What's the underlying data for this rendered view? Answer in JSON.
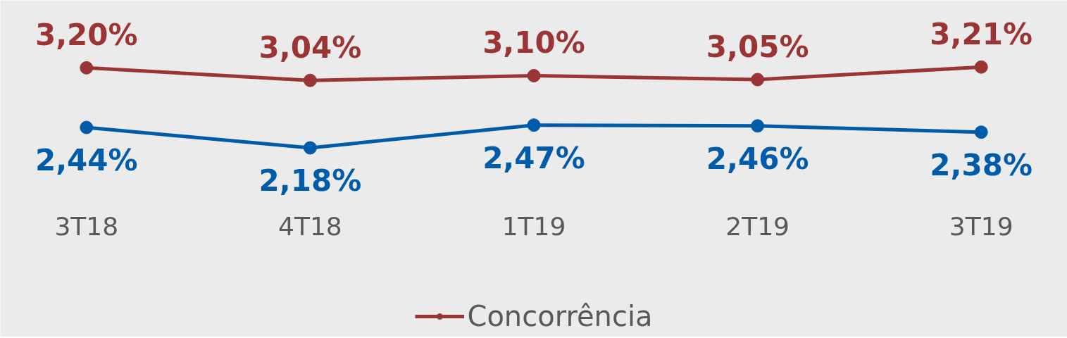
{
  "chart_data": {
    "type": "line",
    "categories": [
      "3T18",
      "4T18",
      "1T19",
      "2T19",
      "3T19"
    ],
    "series": [
      {
        "color": "#005ca9",
        "values": [
          2.44,
          2.18,
          2.47,
          2.46,
          2.38
        ],
        "value_labels": [
          "2,44%",
          "2,18%",
          "2,47%",
          "2,46%",
          "2,38%"
        ]
      },
      {
        "name": "Concorrência",
        "color": "#9b3535",
        "values": [
          3.2,
          3.04,
          3.1,
          3.05,
          3.21
        ],
        "value_labels": [
          "3,20%",
          "3,04%",
          "3,10%",
          "3,05%",
          "3,21%"
        ]
      }
    ],
    "marker": "circle",
    "line_style": "solid",
    "legend": "bottom",
    "tick_labels": "x"
  }
}
